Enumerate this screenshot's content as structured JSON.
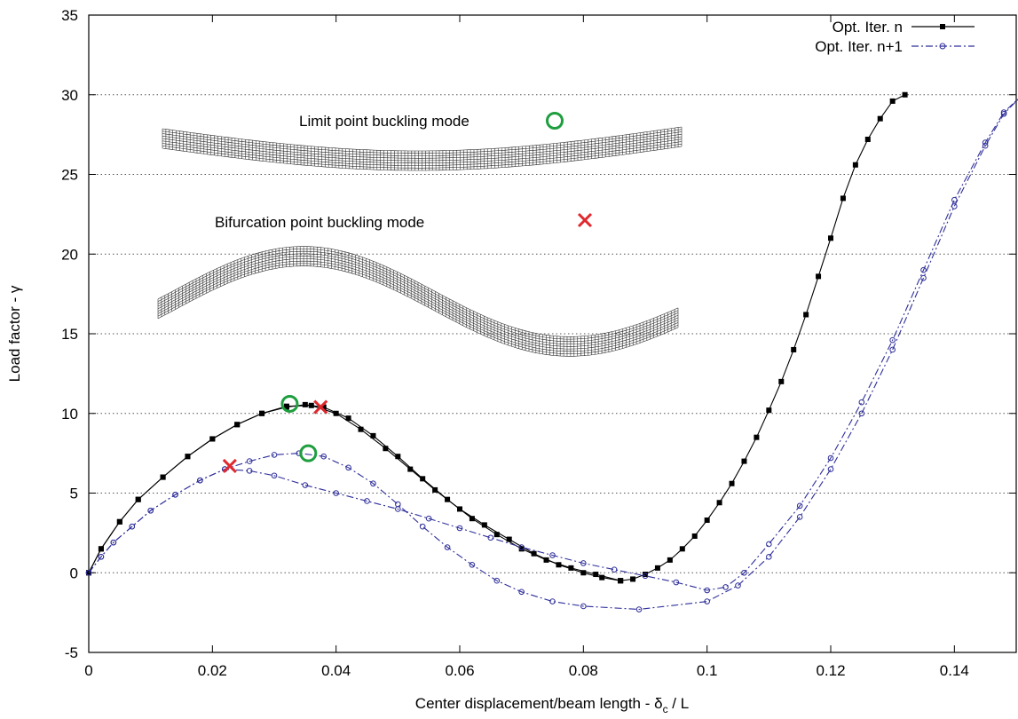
{
  "chart_data": {
    "type": "line",
    "xlabel": "Center displacement/beam length - δ",
    "xlabel_sub": "c",
    "xlabel_tail": " / L",
    "ylabel": "Load factor - γ",
    "xlim": [
      0,
      0.15
    ],
    "ylim": [
      -5,
      35
    ],
    "xticks": [
      0,
      0.02,
      0.04,
      0.06,
      0.08,
      0.1,
      0.12,
      0.14
    ],
    "xtick_labels": [
      "0",
      "0.02",
      "0.04",
      "0.06",
      "0.08",
      "0.1",
      "0.12",
      "0.14"
    ],
    "yticks": [
      -5,
      0,
      5,
      10,
      15,
      20,
      25,
      30,
      35
    ],
    "ytick_labels": [
      "-5",
      "0",
      "5",
      "10",
      "15",
      "20",
      "25",
      "30",
      "35"
    ],
    "grid": "horizontal-dotted",
    "legend_position": "top-right",
    "series": [
      {
        "name": "Opt. Iter. n",
        "color": "#000000",
        "marker": "square",
        "line": "solid",
        "branches": [
          [
            [
              0,
              0
            ],
            [
              0.002,
              1.5
            ],
            [
              0.005,
              3.2
            ],
            [
              0.008,
              4.6
            ],
            [
              0.012,
              6.0
            ],
            [
              0.016,
              7.3
            ],
            [
              0.02,
              8.4
            ],
            [
              0.024,
              9.3
            ],
            [
              0.028,
              10.0
            ],
            [
              0.032,
              10.4
            ],
            [
              0.035,
              10.55
            ],
            [
              0.038,
              10.4
            ],
            [
              0.042,
              9.7
            ],
            [
              0.046,
              8.6
            ],
            [
              0.05,
              7.3
            ],
            [
              0.054,
              5.9
            ],
            [
              0.058,
              4.6
            ],
            [
              0.062,
              3.4
            ],
            [
              0.066,
              2.4
            ],
            [
              0.07,
              1.5
            ],
            [
              0.074,
              0.8
            ],
            [
              0.078,
              0.3
            ],
            [
              0.082,
              -0.1
            ],
            [
              0.086,
              -0.5
            ]
          ],
          [
            [
              0,
              0
            ],
            [
              0.002,
              1.5
            ],
            [
              0.005,
              3.2
            ],
            [
              0.008,
              4.6
            ],
            [
              0.012,
              6.0
            ],
            [
              0.016,
              7.3
            ],
            [
              0.02,
              8.4
            ],
            [
              0.024,
              9.3
            ],
            [
              0.028,
              10.0
            ],
            [
              0.032,
              10.45
            ],
            [
              0.036,
              10.5
            ],
            [
              0.04,
              10.0
            ],
            [
              0.044,
              9.0
            ],
            [
              0.048,
              7.8
            ],
            [
              0.052,
              6.5
            ],
            [
              0.056,
              5.2
            ],
            [
              0.06,
              4.0
            ],
            [
              0.064,
              3.0
            ],
            [
              0.068,
              2.1
            ],
            [
              0.072,
              1.2
            ],
            [
              0.076,
              0.5
            ],
            [
              0.08,
              0.0
            ],
            [
              0.083,
              -0.3
            ],
            [
              0.086,
              -0.5
            ]
          ],
          [
            [
              0.086,
              -0.5
            ],
            [
              0.088,
              -0.4
            ],
            [
              0.09,
              -0.1
            ],
            [
              0.092,
              0.3
            ],
            [
              0.094,
              0.8
            ],
            [
              0.096,
              1.5
            ],
            [
              0.098,
              2.3
            ],
            [
              0.1,
              3.3
            ],
            [
              0.102,
              4.4
            ],
            [
              0.104,
              5.6
            ],
            [
              0.106,
              7.0
            ],
            [
              0.108,
              8.5
            ],
            [
              0.11,
              10.2
            ],
            [
              0.112,
              12.0
            ],
            [
              0.114,
              14.0
            ],
            [
              0.116,
              16.2
            ],
            [
              0.118,
              18.6
            ],
            [
              0.12,
              21.0
            ],
            [
              0.122,
              23.5
            ],
            [
              0.124,
              25.6
            ],
            [
              0.126,
              27.2
            ],
            [
              0.128,
              28.5
            ],
            [
              0.13,
              29.6
            ],
            [
              0.132,
              30.0
            ]
          ]
        ]
      },
      {
        "name": "Opt. Iter. n+1",
        "color": "#2e2e9a",
        "marker": "circle",
        "line": "dash-dot",
        "branches": [
          [
            [
              0,
              0
            ],
            [
              0.002,
              1.0
            ],
            [
              0.004,
              1.9
            ],
            [
              0.007,
              2.9
            ],
            [
              0.01,
              3.9
            ],
            [
              0.014,
              4.9
            ],
            [
              0.018,
              5.8
            ],
            [
              0.022,
              6.5
            ],
            [
              0.026,
              7.0
            ],
            [
              0.03,
              7.4
            ],
            [
              0.034,
              7.5
            ],
            [
              0.038,
              7.3
            ],
            [
              0.042,
              6.6
            ],
            [
              0.046,
              5.6
            ],
            [
              0.05,
              4.3
            ],
            [
              0.054,
              2.9
            ],
            [
              0.058,
              1.6
            ],
            [
              0.062,
              0.5
            ],
            [
              0.066,
              -0.5
            ],
            [
              0.07,
              -1.2
            ],
            [
              0.075,
              -1.8
            ],
            [
              0.08,
              -2.1
            ],
            [
              0.089,
              -2.3
            ],
            [
              0.1,
              -1.8
            ],
            [
              0.105,
              -0.8
            ],
            [
              0.11,
              1.0
            ],
            [
              0.115,
              3.5
            ],
            [
              0.12,
              6.5
            ],
            [
              0.125,
              10.0
            ],
            [
              0.13,
              14.0
            ],
            [
              0.135,
              18.5
            ],
            [
              0.14,
              23.0
            ],
            [
              0.145,
              26.8
            ],
            [
              0.148,
              28.8
            ],
            [
              0.151,
              30.0
            ]
          ],
          [
            [
              0,
              0
            ],
            [
              0.002,
              1.0
            ],
            [
              0.004,
              1.9
            ],
            [
              0.007,
              2.9
            ],
            [
              0.01,
              3.9
            ],
            [
              0.014,
              4.9
            ],
            [
              0.018,
              5.8
            ],
            [
              0.022,
              6.5
            ],
            [
              0.026,
              6.4
            ],
            [
              0.03,
              6.1
            ],
            [
              0.035,
              5.5
            ],
            [
              0.04,
              5.0
            ],
            [
              0.045,
              4.5
            ],
            [
              0.05,
              4.0
            ],
            [
              0.055,
              3.4
            ],
            [
              0.06,
              2.8
            ],
            [
              0.065,
              2.2
            ],
            [
              0.07,
              1.6
            ],
            [
              0.075,
              1.1
            ],
            [
              0.08,
              0.6
            ],
            [
              0.085,
              0.2
            ],
            [
              0.09,
              -0.2
            ],
            [
              0.095,
              -0.6
            ],
            [
              0.1,
              -1.1
            ],
            [
              0.103,
              -0.9
            ],
            [
              0.106,
              0.0
            ],
            [
              0.11,
              1.8
            ],
            [
              0.115,
              4.2
            ],
            [
              0.12,
              7.2
            ],
            [
              0.125,
              10.7
            ],
            [
              0.13,
              14.6
            ],
            [
              0.135,
              19.0
            ],
            [
              0.14,
              23.4
            ],
            [
              0.145,
              27.0
            ],
            [
              0.148,
              28.9
            ],
            [
              0.151,
              30.0
            ]
          ]
        ]
      }
    ],
    "annotations": [
      {
        "text": "Limit point buckling mode",
        "marker": "circle",
        "color": "#1e9e3e"
      },
      {
        "text": "Bifurcation point buckling mode",
        "marker": "cross",
        "color": "#e0282e"
      }
    ],
    "special_points": [
      {
        "kind": "limit",
        "marker": "circle",
        "color": "#1e9e3e",
        "x": 0.0325,
        "y": 10.6
      },
      {
        "kind": "limit",
        "marker": "circle",
        "color": "#1e9e3e",
        "x": 0.0355,
        "y": 7.5
      },
      {
        "kind": "bifurcation",
        "marker": "cross",
        "color": "#e0282e",
        "x": 0.0375,
        "y": 10.4
      },
      {
        "kind": "bifurcation",
        "marker": "cross",
        "color": "#e0282e",
        "x": 0.0228,
        "y": 6.7
      }
    ]
  }
}
